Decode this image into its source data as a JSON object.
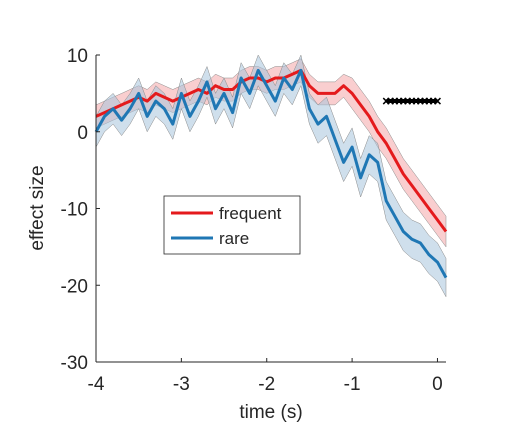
{
  "chart_data": {
    "type": "line",
    "title": "",
    "xlabel": "time (s)",
    "ylabel": "effect size",
    "xlim": [
      -4,
      0.1
    ],
    "ylim": [
      -30,
      10
    ],
    "xticks": [
      -4,
      -3,
      -2,
      -1,
      0
    ],
    "yticks": [
      -30,
      -20,
      -10,
      0,
      10
    ],
    "xtick_labels": [
      "-4",
      "-3",
      "-2",
      "-1",
      "0"
    ],
    "ytick_labels": [
      "-30",
      "-20",
      "-10",
      "0",
      "10"
    ],
    "grid": false,
    "legend_position": "center-left",
    "x": [
      -4.0,
      -3.9,
      -3.8,
      -3.7,
      -3.6,
      -3.5,
      -3.4,
      -3.3,
      -3.2,
      -3.1,
      -3.0,
      -2.9,
      -2.8,
      -2.7,
      -2.6,
      -2.5,
      -2.4,
      -2.3,
      -2.2,
      -2.1,
      -2.0,
      -1.9,
      -1.8,
      -1.7,
      -1.6,
      -1.5,
      -1.4,
      -1.3,
      -1.2,
      -1.1,
      -1.0,
      -0.9,
      -0.8,
      -0.7,
      -0.6,
      -0.5,
      -0.4,
      -0.3,
      -0.2,
      -0.1,
      0.0,
      0.1
    ],
    "series": [
      {
        "name": "frequent",
        "color": "#e41a1c",
        "band_color": "#f4a6a8",
        "values": [
          2.0,
          2.5,
          3.0,
          3.5,
          4.0,
          4.5,
          4.0,
          5.0,
          4.5,
          4.0,
          4.5,
          5.0,
          5.5,
          5.0,
          6.0,
          5.5,
          5.5,
          6.5,
          7.0,
          7.0,
          6.5,
          7.0,
          7.0,
          7.5,
          8.0,
          6.0,
          5.0,
          5.0,
          5.0,
          6.0,
          5.0,
          3.5,
          2.0,
          0.0,
          -1.5,
          -3.5,
          -5.5,
          -7.0,
          -8.5,
          -10.0,
          -11.5,
          -13.0
        ],
        "lower": [
          0.5,
          1.0,
          1.5,
          2.0,
          2.5,
          3.0,
          2.5,
          3.5,
          3.0,
          2.5,
          3.0,
          3.5,
          4.0,
          3.5,
          4.5,
          4.0,
          4.0,
          5.0,
          5.5,
          5.5,
          5.0,
          5.5,
          5.5,
          6.0,
          6.5,
          4.5,
          3.5,
          3.5,
          3.5,
          4.5,
          3.0,
          1.5,
          0.0,
          -2.0,
          -3.5,
          -5.5,
          -7.5,
          -9.0,
          -10.5,
          -12.0,
          -13.5,
          -15.0
        ],
        "upper": [
          3.5,
          4.0,
          4.5,
          5.0,
          5.5,
          6.0,
          5.5,
          6.5,
          6.0,
          5.5,
          6.0,
          6.5,
          7.0,
          6.5,
          7.5,
          7.0,
          7.0,
          8.0,
          8.5,
          8.5,
          8.0,
          8.5,
          8.5,
          9.0,
          9.5,
          7.5,
          6.5,
          6.5,
          6.5,
          7.5,
          7.0,
          5.5,
          4.0,
          2.0,
          0.5,
          -1.5,
          -3.5,
          -5.0,
          -6.5,
          -8.0,
          -9.5,
          -11.0
        ]
      },
      {
        "name": "rare",
        "color": "#1f77b4",
        "band_color": "#a8c4dc",
        "values": [
          0.0,
          2.0,
          3.0,
          1.5,
          3.0,
          5.0,
          2.0,
          4.0,
          3.0,
          1.0,
          5.0,
          2.0,
          4.0,
          6.5,
          3.0,
          5.0,
          2.5,
          7.0,
          5.0,
          8.0,
          6.0,
          4.0,
          7.0,
          5.5,
          8.0,
          3.0,
          1.0,
          2.0,
          -1.0,
          -4.0,
          -2.0,
          -6.0,
          -3.0,
          -4.0,
          -9.0,
          -11.0,
          -13.0,
          -14.0,
          -14.5,
          -16.0,
          -17.0,
          -19.0
        ],
        "lower": [
          -2.0,
          0.0,
          1.0,
          -0.5,
          1.0,
          3.0,
          0.0,
          2.0,
          1.0,
          -1.0,
          3.0,
          0.0,
          2.0,
          4.5,
          1.0,
          3.0,
          0.5,
          5.0,
          3.0,
          6.0,
          4.0,
          2.0,
          5.0,
          3.5,
          6.0,
          1.0,
          -1.5,
          -0.5,
          -3.5,
          -6.5,
          -4.5,
          -8.5,
          -5.5,
          -6.5,
          -11.5,
          -13.5,
          -15.5,
          -16.5,
          -17.0,
          -18.5,
          -19.5,
          -21.5
        ],
        "upper": [
          2.0,
          4.0,
          5.0,
          3.5,
          5.0,
          7.0,
          4.0,
          6.0,
          5.0,
          3.0,
          7.0,
          4.0,
          6.0,
          8.5,
          5.0,
          7.0,
          4.5,
          9.0,
          7.0,
          10.0,
          8.0,
          6.0,
          9.0,
          7.5,
          10.0,
          5.0,
          3.5,
          4.5,
          1.5,
          -1.5,
          0.5,
          -3.5,
          -0.5,
          -1.5,
          -6.5,
          -8.5,
          -10.5,
          -11.5,
          -12.0,
          -13.5,
          -14.5,
          -16.5
        ]
      }
    ],
    "significance_bar": {
      "x_start": -0.6,
      "x_end": 0.0,
      "y": 4,
      "color": "#000000"
    }
  }
}
